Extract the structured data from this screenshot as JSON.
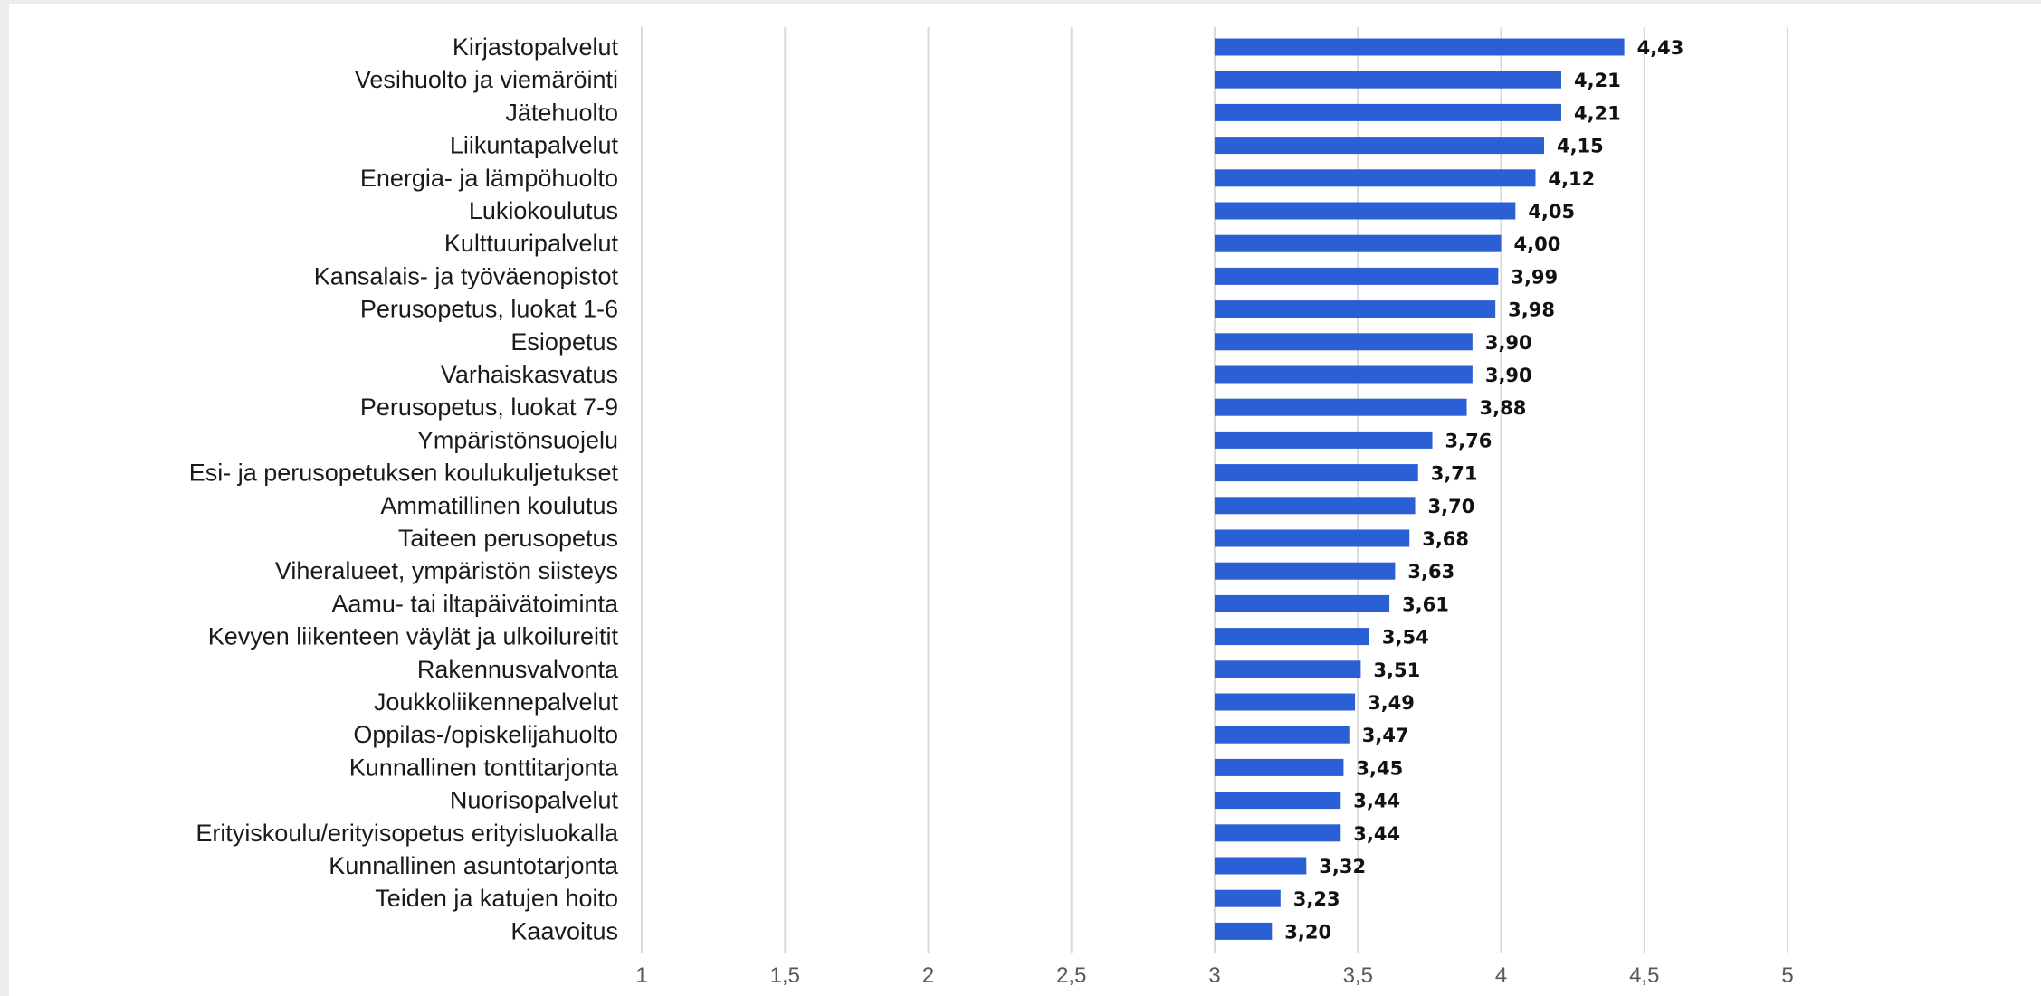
{
  "chart_data": {
    "type": "bar",
    "orientation": "horizontal",
    "categories": [
      "Kirjastopalvelut",
      "Vesihuolto ja viemäröinti",
      "Jätehuolto",
      "Liikuntapalvelut",
      "Energia- ja lämpöhuolto",
      "Lukiokoulutus",
      "Kulttuuripalvelut",
      "Kansalais- ja työväenopistot",
      "Perusopetus, luokat 1-6",
      "Esiopetus",
      "Varhaiskasvatus",
      "Perusopetus, luokat 7-9",
      "Ympäristönsuojelu",
      "Esi- ja perusopetuksen koulukuljetukset",
      "Ammatillinen koulutus",
      "Taiteen perusopetus",
      "Viheralueet, ympäristön siisteys",
      "Aamu- tai iltapäivätoiminta",
      "Kevyen liikenteen väylät ja ulkoilureitit",
      "Rakennusvalvonta",
      "Joukkoliikennepalvelut",
      "Oppilas-/opiskelijahuolto",
      "Kunnallinen tonttitarjonta",
      "Nuorisopalvelut",
      "Erityiskoulu/erityisopetus erityisluokalla",
      "Kunnallinen asuntotarjonta",
      "Teiden ja katujen hoito",
      "Kaavoitus"
    ],
    "values": [
      4.43,
      4.21,
      4.21,
      4.15,
      4.12,
      4.05,
      4.0,
      3.99,
      3.98,
      3.9,
      3.9,
      3.88,
      3.76,
      3.71,
      3.7,
      3.68,
      3.63,
      3.61,
      3.54,
      3.51,
      3.49,
      3.47,
      3.45,
      3.44,
      3.44,
      3.32,
      3.23,
      3.2
    ],
    "value_labels": [
      "4,43",
      "4,21",
      "4,21",
      "4,15",
      "4,12",
      "4,05",
      "4,00",
      "3,99",
      "3,98",
      "3,90",
      "3,90",
      "3,88",
      "3,76",
      "3,71",
      "3,70",
      "3,68",
      "3,63",
      "3,61",
      "3,54",
      "3,51",
      "3,49",
      "3,47",
      "3,45",
      "3,44",
      "3,44",
      "3,32",
      "3,23",
      "3,20"
    ],
    "bar_base": 3,
    "xlim": [
      1,
      5
    ],
    "ticks": [
      1,
      1.5,
      2,
      2.5,
      3,
      3.5,
      4,
      4.5,
      5
    ],
    "tick_labels": [
      "1",
      "1,5",
      "2",
      "2,5",
      "3",
      "3,5",
      "4",
      "4,5",
      "5"
    ],
    "grid": true,
    "legend": "none",
    "title": "",
    "xlabel": "",
    "ylabel": "",
    "colors": {
      "bar": "#2a5fd6",
      "grid": "#d9d9d9",
      "plot_background": "#ffffff",
      "page_background": "#ececec"
    }
  }
}
